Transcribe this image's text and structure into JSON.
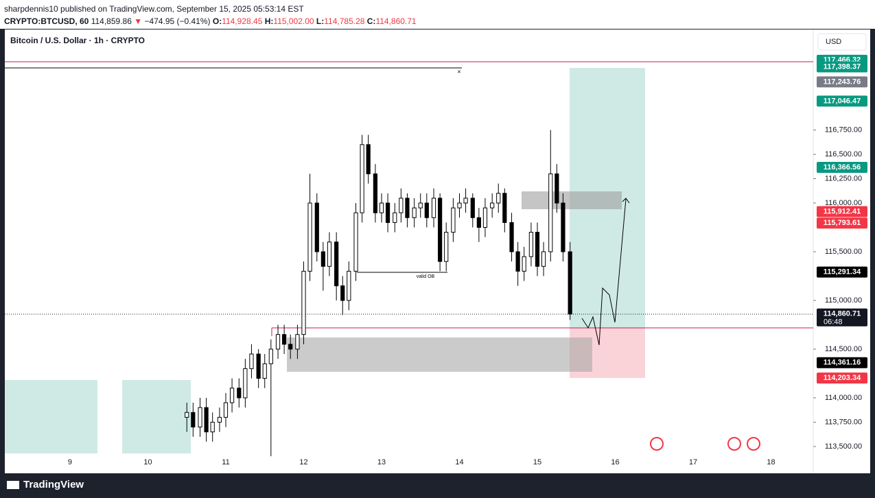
{
  "header": {
    "published": "sharpdennis10 published on TradingView.com, September 15, 2025 05:53:14 EST",
    "symbol": "CRYPTO:BTCUSD, 60",
    "last": "114,859.86",
    "arrow": "▼",
    "change": "−474.95 (−0.41%)",
    "o_label": "O:",
    "open": "114,928.45",
    "h_label": "H:",
    "high": "115,002.00",
    "l_label": "L:",
    "low": "114,785.28",
    "c_label": "C:",
    "close": "114,860.71"
  },
  "legend": "Bitcoin / U.S. Dollar · 1h · CRYPTO",
  "currency": "USD",
  "annotation": "valid OB",
  "close_marker": "×",
  "footer": "TradingView",
  "chart_data": {
    "type": "candlestick",
    "up_color": "#ffffff",
    "down_color": "#000000",
    "x": [
      10.5,
      10.58,
      10.67,
      10.75,
      10.83,
      10.92,
      11,
      11.08,
      11.17,
      11.25,
      11.33,
      11.42,
      11.5,
      11.58,
      11.67,
      11.75,
      11.83,
      11.92,
      12,
      12.08,
      12.17,
      12.25,
      12.33,
      12.42,
      12.5,
      12.58,
      12.67,
      12.75,
      12.83,
      12.92,
      13,
      13.08,
      13.17,
      13.25,
      13.33,
      13.42,
      13.5,
      13.58,
      13.67,
      13.75,
      13.83,
      13.92,
      14,
      14.08,
      14.17,
      14.25,
      14.33,
      14.42,
      14.5,
      14.58,
      14.67,
      14.75,
      14.83,
      14.92,
      15,
      15.08,
      15.17,
      15.25,
      15.33,
      15.42
    ],
    "open": [
      113800,
      113850,
      113700,
      113900,
      113650,
      113750,
      113800,
      113950,
      114100,
      114000,
      114300,
      114450,
      114200,
      114350,
      114500,
      114650,
      114550,
      114500,
      114650,
      115300,
      116000,
      115500,
      115350,
      115600,
      115150,
      115000,
      115300,
      115900,
      116600,
      116300,
      115900,
      116000,
      115800,
      115900,
      116050,
      115850,
      115950,
      116000,
      115850,
      116050,
      115400,
      115700,
      115950,
      116000,
      116050,
      115850,
      115750,
      115950,
      116000,
      116100,
      115800,
      115500,
      115300,
      115450,
      115700,
      115350,
      115500,
      116300,
      116000,
      115500
    ],
    "high": [
      113950,
      113950,
      114000,
      114000,
      113850,
      113900,
      114050,
      114200,
      114200,
      114400,
      114550,
      114500,
      114450,
      114600,
      114750,
      114750,
      114650,
      114750,
      115400,
      116300,
      116100,
      115600,
      115700,
      115700,
      115250,
      115400,
      116000,
      116700,
      116700,
      116400,
      116100,
      116100,
      116000,
      116150,
      116100,
      116050,
      116100,
      116100,
      116150,
      116100,
      115800,
      116050,
      116100,
      116150,
      116100,
      115950,
      116050,
      116100,
      116200,
      116150,
      115900,
      115600,
      115550,
      115800,
      115800,
      115600,
      116750,
      116400,
      116100,
      115600
    ],
    "low": [
      113650,
      113600,
      113600,
      113550,
      113550,
      113650,
      113700,
      113850,
      113900,
      113900,
      114200,
      114100,
      114100,
      113400,
      114400,
      114450,
      114400,
      114400,
      114550,
      115200,
      115400,
      115100,
      115250,
      115000,
      114850,
      114900,
      115200,
      115800,
      116200,
      115800,
      115800,
      115700,
      115700,
      115800,
      115750,
      115750,
      115850,
      115750,
      115750,
      115300,
      115300,
      115600,
      115850,
      115900,
      115750,
      115600,
      115650,
      115850,
      115900,
      115700,
      115400,
      115150,
      115200,
      115350,
      115250,
      115250,
      115400,
      115900,
      115400,
      114800
    ],
    "close": [
      113850,
      113700,
      113900,
      113650,
      113750,
      113800,
      113950,
      114100,
      114000,
      114300,
      114450,
      114200,
      114350,
      114500,
      114650,
      114550,
      114500,
      114650,
      115300,
      116000,
      115500,
      115350,
      115600,
      115150,
      115000,
      115300,
      115900,
      116600,
      116300,
      115900,
      116000,
      115800,
      115900,
      116050,
      115850,
      115950,
      116000,
      115850,
      116050,
      115400,
      115700,
      115950,
      116000,
      116050,
      115850,
      115750,
      115950,
      116000,
      116100,
      115800,
      115500,
      115300,
      115450,
      115700,
      115350,
      115500,
      116300,
      116000,
      115500,
      114860
    ],
    "xlim": [
      8.163,
      18.542
    ],
    "xticks": [
      9,
      10,
      11,
      12,
      13,
      14,
      15,
      16,
      17,
      18
    ],
    "ylim": [
      113225,
      117782
    ],
    "yticks": [
      {
        "value": 113500,
        "label": "113,500.00"
      },
      {
        "value": 113750,
        "label": "113,750.00"
      },
      {
        "value": 114000,
        "label": "114,000.00"
      },
      {
        "value": 114500,
        "label": "114,500.00"
      },
      {
        "value": 115000,
        "label": "115,000.00"
      },
      {
        "value": 115500,
        "label": "115,500.00"
      },
      {
        "value": 116000,
        "label": "116,000.00"
      },
      {
        "value": 116250,
        "label": "116,250.00"
      },
      {
        "value": 116500,
        "label": "116,500.00"
      },
      {
        "value": 116750,
        "label": "116,750.00"
      }
    ],
    "price_labels": [
      {
        "value": 117466.32,
        "label": "117,466.32",
        "color": "#089981"
      },
      {
        "value": 117398.37,
        "label": "117,398.37",
        "color": "#089981"
      },
      {
        "value": 117243.76,
        "label": "117,243.76",
        "color": "#787b86"
      },
      {
        "value": 117046.47,
        "label": "117,046.47",
        "color": "#089981"
      },
      {
        "value": 116366.56,
        "label": "116,366.56",
        "color": "#089981"
      },
      {
        "value": 115912.41,
        "label": "115,912.41",
        "color": "#f23645"
      },
      {
        "value": 115793.61,
        "label": "115,793.61",
        "color": "#f23645"
      },
      {
        "value": 115291.34,
        "label": "115,291.34",
        "color": "#000000"
      },
      {
        "value": 114860.71,
        "label": "114,860.71",
        "color": "#131722"
      },
      {
        "value": 114361.16,
        "label": "114,361.16",
        "color": "#000000"
      },
      {
        "value": 114203.34,
        "label": "114,203.34",
        "color": "#f23645"
      }
    ],
    "countdown": "06:48"
  }
}
